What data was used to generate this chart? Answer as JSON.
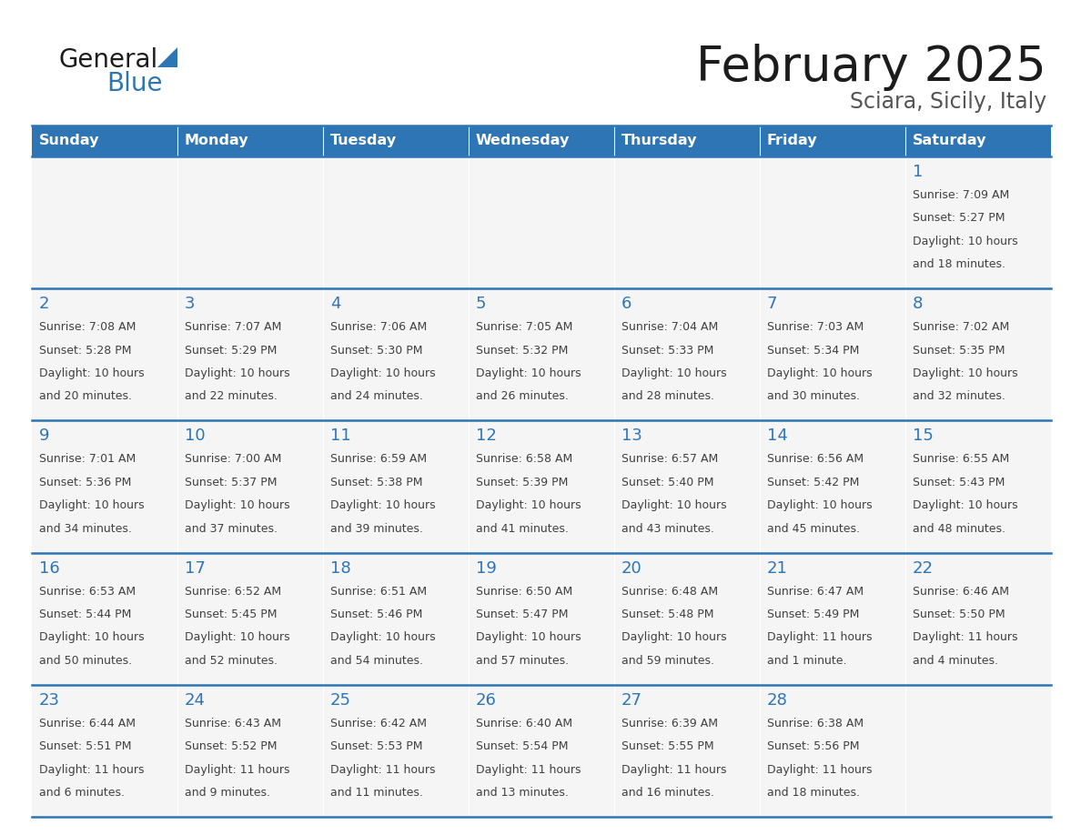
{
  "title": "February 2025",
  "subtitle": "Sciara, Sicily, Italy",
  "header_bg": "#2E75B6",
  "header_text_color": "#FFFFFF",
  "cell_bg": "#F5F5F5",
  "day_number_color": "#2E75B6",
  "cell_text_color": "#404040",
  "border_color": "#2E75B6",
  "days_of_week": [
    "Sunday",
    "Monday",
    "Tuesday",
    "Wednesday",
    "Thursday",
    "Friday",
    "Saturday"
  ],
  "weeks": [
    [
      {
        "day": null,
        "sunrise": null,
        "sunset": null,
        "daylight_line1": null,
        "daylight_line2": null
      },
      {
        "day": null,
        "sunrise": null,
        "sunset": null,
        "daylight_line1": null,
        "daylight_line2": null
      },
      {
        "day": null,
        "sunrise": null,
        "sunset": null,
        "daylight_line1": null,
        "daylight_line2": null
      },
      {
        "day": null,
        "sunrise": null,
        "sunset": null,
        "daylight_line1": null,
        "daylight_line2": null
      },
      {
        "day": null,
        "sunrise": null,
        "sunset": null,
        "daylight_line1": null,
        "daylight_line2": null
      },
      {
        "day": null,
        "sunrise": null,
        "sunset": null,
        "daylight_line1": null,
        "daylight_line2": null
      },
      {
        "day": 1,
        "sunrise": "7:09 AM",
        "sunset": "5:27 PM",
        "daylight_line1": "Daylight: 10 hours",
        "daylight_line2": "and 18 minutes."
      }
    ],
    [
      {
        "day": 2,
        "sunrise": "7:08 AM",
        "sunset": "5:28 PM",
        "daylight_line1": "Daylight: 10 hours",
        "daylight_line2": "and 20 minutes."
      },
      {
        "day": 3,
        "sunrise": "7:07 AM",
        "sunset": "5:29 PM",
        "daylight_line1": "Daylight: 10 hours",
        "daylight_line2": "and 22 minutes."
      },
      {
        "day": 4,
        "sunrise": "7:06 AM",
        "sunset": "5:30 PM",
        "daylight_line1": "Daylight: 10 hours",
        "daylight_line2": "and 24 minutes."
      },
      {
        "day": 5,
        "sunrise": "7:05 AM",
        "sunset": "5:32 PM",
        "daylight_line1": "Daylight: 10 hours",
        "daylight_line2": "and 26 minutes."
      },
      {
        "day": 6,
        "sunrise": "7:04 AM",
        "sunset": "5:33 PM",
        "daylight_line1": "Daylight: 10 hours",
        "daylight_line2": "and 28 minutes."
      },
      {
        "day": 7,
        "sunrise": "7:03 AM",
        "sunset": "5:34 PM",
        "daylight_line1": "Daylight: 10 hours",
        "daylight_line2": "and 30 minutes."
      },
      {
        "day": 8,
        "sunrise": "7:02 AM",
        "sunset": "5:35 PM",
        "daylight_line1": "Daylight: 10 hours",
        "daylight_line2": "and 32 minutes."
      }
    ],
    [
      {
        "day": 9,
        "sunrise": "7:01 AM",
        "sunset": "5:36 PM",
        "daylight_line1": "Daylight: 10 hours",
        "daylight_line2": "and 34 minutes."
      },
      {
        "day": 10,
        "sunrise": "7:00 AM",
        "sunset": "5:37 PM",
        "daylight_line1": "Daylight: 10 hours",
        "daylight_line2": "and 37 minutes."
      },
      {
        "day": 11,
        "sunrise": "6:59 AM",
        "sunset": "5:38 PM",
        "daylight_line1": "Daylight: 10 hours",
        "daylight_line2": "and 39 minutes."
      },
      {
        "day": 12,
        "sunrise": "6:58 AM",
        "sunset": "5:39 PM",
        "daylight_line1": "Daylight: 10 hours",
        "daylight_line2": "and 41 minutes."
      },
      {
        "day": 13,
        "sunrise": "6:57 AM",
        "sunset": "5:40 PM",
        "daylight_line1": "Daylight: 10 hours",
        "daylight_line2": "and 43 minutes."
      },
      {
        "day": 14,
        "sunrise": "6:56 AM",
        "sunset": "5:42 PM",
        "daylight_line1": "Daylight: 10 hours",
        "daylight_line2": "and 45 minutes."
      },
      {
        "day": 15,
        "sunrise": "6:55 AM",
        "sunset": "5:43 PM",
        "daylight_line1": "Daylight: 10 hours",
        "daylight_line2": "and 48 minutes."
      }
    ],
    [
      {
        "day": 16,
        "sunrise": "6:53 AM",
        "sunset": "5:44 PM",
        "daylight_line1": "Daylight: 10 hours",
        "daylight_line2": "and 50 minutes."
      },
      {
        "day": 17,
        "sunrise": "6:52 AM",
        "sunset": "5:45 PM",
        "daylight_line1": "Daylight: 10 hours",
        "daylight_line2": "and 52 minutes."
      },
      {
        "day": 18,
        "sunrise": "6:51 AM",
        "sunset": "5:46 PM",
        "daylight_line1": "Daylight: 10 hours",
        "daylight_line2": "and 54 minutes."
      },
      {
        "day": 19,
        "sunrise": "6:50 AM",
        "sunset": "5:47 PM",
        "daylight_line1": "Daylight: 10 hours",
        "daylight_line2": "and 57 minutes."
      },
      {
        "day": 20,
        "sunrise": "6:48 AM",
        "sunset": "5:48 PM",
        "daylight_line1": "Daylight: 10 hours",
        "daylight_line2": "and 59 minutes."
      },
      {
        "day": 21,
        "sunrise": "6:47 AM",
        "sunset": "5:49 PM",
        "daylight_line1": "Daylight: 11 hours",
        "daylight_line2": "and 1 minute."
      },
      {
        "day": 22,
        "sunrise": "6:46 AM",
        "sunset": "5:50 PM",
        "daylight_line1": "Daylight: 11 hours",
        "daylight_line2": "and 4 minutes."
      }
    ],
    [
      {
        "day": 23,
        "sunrise": "6:44 AM",
        "sunset": "5:51 PM",
        "daylight_line1": "Daylight: 11 hours",
        "daylight_line2": "and 6 minutes."
      },
      {
        "day": 24,
        "sunrise": "6:43 AM",
        "sunset": "5:52 PM",
        "daylight_line1": "Daylight: 11 hours",
        "daylight_line2": "and 9 minutes."
      },
      {
        "day": 25,
        "sunrise": "6:42 AM",
        "sunset": "5:53 PM",
        "daylight_line1": "Daylight: 11 hours",
        "daylight_line2": "and 11 minutes."
      },
      {
        "day": 26,
        "sunrise": "6:40 AM",
        "sunset": "5:54 PM",
        "daylight_line1": "Daylight: 11 hours",
        "daylight_line2": "and 13 minutes."
      },
      {
        "day": 27,
        "sunrise": "6:39 AM",
        "sunset": "5:55 PM",
        "daylight_line1": "Daylight: 11 hours",
        "daylight_line2": "and 16 minutes."
      },
      {
        "day": 28,
        "sunrise": "6:38 AM",
        "sunset": "5:56 PM",
        "daylight_line1": "Daylight: 11 hours",
        "daylight_line2": "and 18 minutes."
      },
      {
        "day": null,
        "sunrise": null,
        "sunset": null,
        "daylight_line1": null,
        "daylight_line2": null
      }
    ]
  ]
}
